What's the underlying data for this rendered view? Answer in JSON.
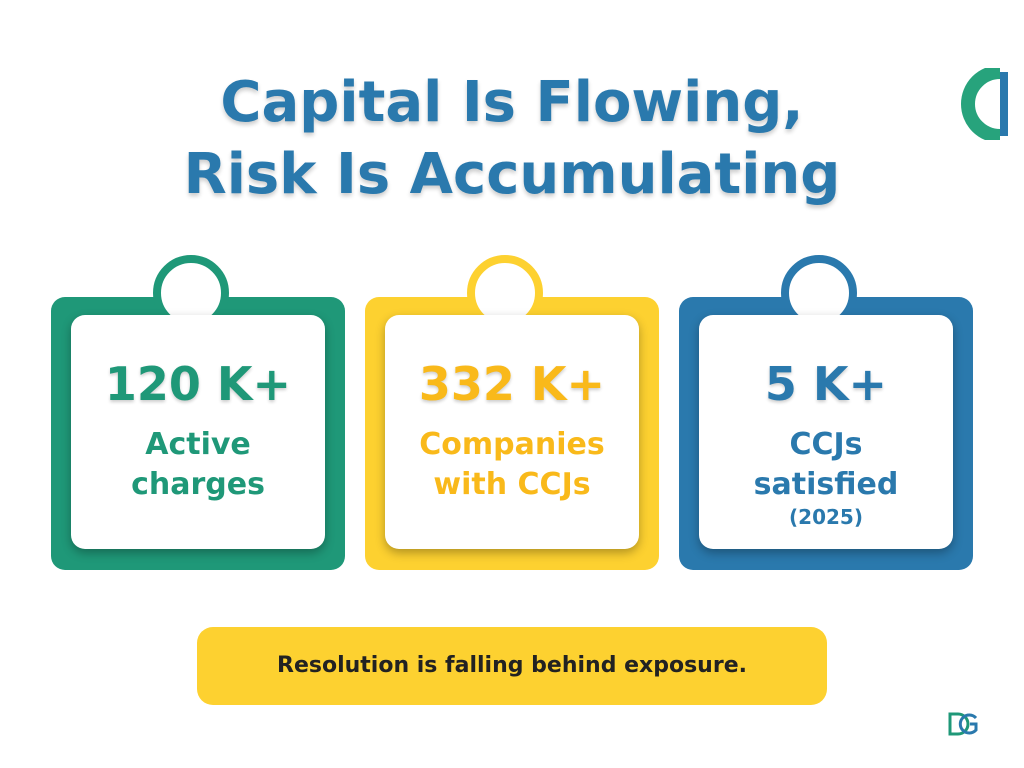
{
  "header": {
    "title_line1": "Capital Is Flowing,",
    "title_line2": "Risk Is Accumulating"
  },
  "cards": [
    {
      "value": "120 K+",
      "label_line1": "Active",
      "label_line2": "charges"
    },
    {
      "value": "332 K+",
      "label_line1": "Companies",
      "label_line2": "with CCJs"
    },
    {
      "value": "5 K+",
      "label_line1": "CCJs",
      "label_line2": "satisfied",
      "note": "(2025)"
    }
  ],
  "footer": {
    "message": "Resolution is falling behind exposure."
  }
}
